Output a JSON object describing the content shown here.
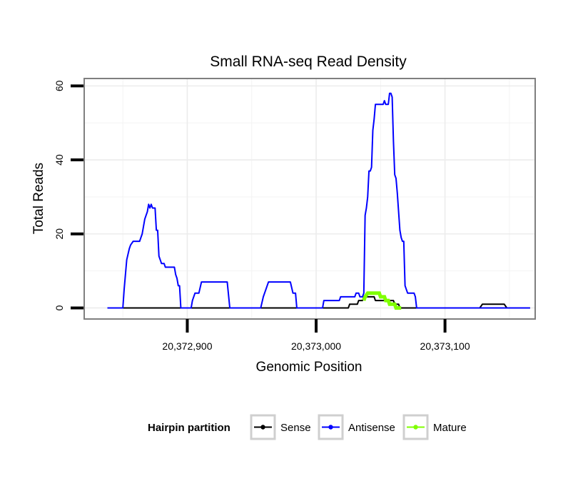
{
  "chart_data": {
    "type": "line",
    "title": "Small RNA-seq Read Density",
    "xlabel": "Genomic Position",
    "ylabel": "Total Reads",
    "xlim": [
      20372820,
      20373170
    ],
    "ylim": [
      -3,
      62
    ],
    "x_ticks": [
      20372900,
      20373000,
      20373100
    ],
    "x_tick_labels": [
      "20,372,900",
      "20,373,000",
      "20,373,100"
    ],
    "y_ticks": [
      0,
      20,
      40,
      60
    ],
    "y_tick_labels": [
      "0",
      "20",
      "40",
      "60"
    ],
    "grid": true,
    "legend": {
      "title": "Hairpin partition",
      "position": "bottom",
      "entries": [
        "Sense",
        "Antisense",
        "Mature"
      ]
    },
    "series": [
      {
        "name": "Sense",
        "color": "#000000",
        "points": [
          [
            20372838,
            0
          ],
          [
            20373025,
            0
          ],
          [
            20373026,
            1
          ],
          [
            20373032,
            1
          ],
          [
            20373033,
            2
          ],
          [
            20373036,
            2
          ],
          [
            20373037,
            3
          ],
          [
            20373045,
            3
          ],
          [
            20373046,
            2
          ],
          [
            20373060,
            2
          ],
          [
            20373061,
            1
          ],
          [
            20373064,
            1
          ],
          [
            20373065,
            0
          ],
          [
            20373127,
            0
          ],
          [
            20373129,
            1
          ],
          [
            20373146,
            1
          ],
          [
            20373148,
            0
          ],
          [
            20373166,
            0
          ]
        ]
      },
      {
        "name": "Antisense",
        "color": "#0000ff",
        "points": [
          [
            20372838,
            0
          ],
          [
            20372850,
            0
          ],
          [
            20372851,
            5
          ],
          [
            20372853,
            13
          ],
          [
            20372855,
            16
          ],
          [
            20372856,
            17
          ],
          [
            20372858,
            18
          ],
          [
            20372863,
            18
          ],
          [
            20372864,
            19
          ],
          [
            20372865,
            20
          ],
          [
            20372866,
            22
          ],
          [
            20372867,
            24
          ],
          [
            20372868,
            25
          ],
          [
            20372869,
            26
          ],
          [
            20372870,
            28
          ],
          [
            20372871,
            27
          ],
          [
            20372872,
            28
          ],
          [
            20372873,
            27
          ],
          [
            20372875,
            27
          ],
          [
            20372876,
            21
          ],
          [
            20372877,
            21
          ],
          [
            20372878,
            14
          ],
          [
            20372879,
            13
          ],
          [
            20372880,
            12
          ],
          [
            20372882,
            12
          ],
          [
            20372883,
            11
          ],
          [
            20372890,
            11
          ],
          [
            20372891,
            9
          ],
          [
            20372892,
            8
          ],
          [
            20372893,
            6
          ],
          [
            20372894,
            6
          ],
          [
            20372895,
            0
          ],
          [
            20372903,
            0
          ],
          [
            20372904,
            2
          ],
          [
            20372906,
            4
          ],
          [
            20372909,
            4
          ],
          [
            20372911,
            7
          ],
          [
            20372931,
            7
          ],
          [
            20372933,
            0
          ],
          [
            20372957,
            0
          ],
          [
            20372959,
            3
          ],
          [
            20372961,
            5
          ],
          [
            20372963,
            7
          ],
          [
            20372980,
            7
          ],
          [
            20372982,
            4
          ],
          [
            20372984,
            4
          ],
          [
            20372985,
            0
          ],
          [
            20373005,
            0
          ],
          [
            20373006,
            2
          ],
          [
            20373018,
            2
          ],
          [
            20373019,
            3
          ],
          [
            20373030,
            3
          ],
          [
            20373031,
            4
          ],
          [
            20373033,
            4
          ],
          [
            20373034,
            3
          ],
          [
            20373036,
            3
          ],
          [
            20373037,
            4
          ],
          [
            20373038,
            25
          ],
          [
            20373039,
            27
          ],
          [
            20373040,
            30
          ],
          [
            20373041,
            37
          ],
          [
            20373042,
            37
          ],
          [
            20373043,
            38
          ],
          [
            20373044,
            48
          ],
          [
            20373045,
            51
          ],
          [
            20373046,
            55
          ],
          [
            20373052,
            55
          ],
          [
            20373053,
            56
          ],
          [
            20373054,
            55
          ],
          [
            20373056,
            55
          ],
          [
            20373057,
            58
          ],
          [
            20373058,
            58
          ],
          [
            20373059,
            57
          ],
          [
            20373060,
            45
          ],
          [
            20373061,
            36
          ],
          [
            20373062,
            35
          ],
          [
            20373063,
            31
          ],
          [
            20373064,
            26
          ],
          [
            20373065,
            21
          ],
          [
            20373066,
            19
          ],
          [
            20373067,
            18
          ],
          [
            20373068,
            18
          ],
          [
            20373069,
            6
          ],
          [
            20373070,
            5
          ],
          [
            20373071,
            4
          ],
          [
            20373076,
            4
          ],
          [
            20373077,
            3
          ],
          [
            20373078,
            0
          ],
          [
            20373166,
            0
          ]
        ]
      },
      {
        "name": "Mature",
        "color": "#7fff00",
        "points": [
          [
            20373037,
            2
          ],
          [
            20373038,
            3
          ],
          [
            20373040,
            4
          ],
          [
            20373049,
            4
          ],
          [
            20373050,
            3
          ],
          [
            20373053,
            3
          ],
          [
            20373054,
            2
          ],
          [
            20373056,
            2
          ],
          [
            20373057,
            1
          ],
          [
            20373061,
            1
          ],
          [
            20373062,
            0
          ],
          [
            20373066,
            0
          ]
        ]
      }
    ]
  }
}
